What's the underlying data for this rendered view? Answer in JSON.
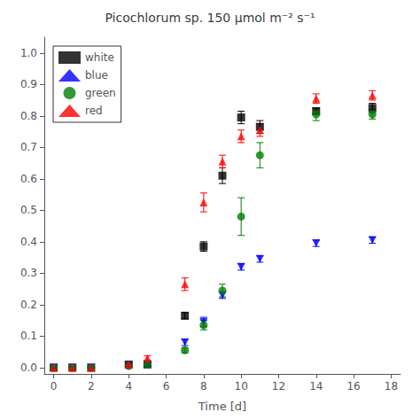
{
  "chart_data": {
    "type": "scatter",
    "title": "Picochlorum sp. 150 μmol m⁻² s⁻¹",
    "x_label": "Time [d]",
    "xlim": [
      -0.5,
      18.5
    ],
    "ylim": [
      -0.02,
      1.05
    ],
    "xticks": [
      0,
      2,
      4,
      6,
      8,
      10,
      12,
      14,
      16,
      18
    ],
    "yticks": [
      {
        "value": 0.0,
        "label": "0.0"
      },
      0.1,
      0.2,
      0.3,
      0.4,
      0.5,
      0.6,
      0.7,
      0.8,
      0.9,
      {
        "value": 1.0,
        "label": "1.0"
      }
    ],
    "grid": false,
    "legend": "upper left",
    "series": [
      {
        "name": "white",
        "color": "#000000",
        "marker": "square",
        "x": [
          0,
          1,
          2,
          4,
          5,
          7,
          8,
          9,
          10,
          11,
          14,
          17
        ],
        "values": [
          0.0,
          0.0,
          0.0,
          0.01,
          0.01,
          0.165,
          0.385,
          0.61,
          0.795,
          0.765,
          0.815,
          0.825
        ],
        "yerr": [
          0.0,
          0.0,
          0.0,
          0.005,
          0.005,
          0.01,
          0.015,
          0.025,
          0.02,
          0.02,
          0.01,
          0.015
        ]
      },
      {
        "name": "blue",
        "color": "#0000ff",
        "marker": "triangle_down",
        "x": [
          0,
          1,
          2,
          4,
          5,
          7,
          8,
          9,
          10,
          11,
          14,
          17
        ],
        "values": [
          0.0,
          0.0,
          0.0,
          0.005,
          0.01,
          0.08,
          0.145,
          0.23,
          0.32,
          0.345,
          0.395,
          0.405
        ],
        "yerr": [
          0.0,
          0.0,
          0.0,
          0.005,
          0.005,
          0.01,
          0.015,
          0.01,
          0.01,
          0.01,
          0.01,
          0.01
        ]
      },
      {
        "name": "green",
        "color": "#008000",
        "marker": "circle",
        "x": [
          0,
          1,
          2,
          4,
          5,
          7,
          8,
          9,
          10,
          11,
          14,
          17
        ],
        "values": [
          0.0,
          0.0,
          0.0,
          0.005,
          0.01,
          0.055,
          0.135,
          0.245,
          0.48,
          0.675,
          0.805,
          0.805
        ],
        "yerr": [
          0.0,
          0.0,
          0.0,
          0.005,
          0.005,
          0.008,
          0.015,
          0.02,
          0.06,
          0.04,
          0.02,
          0.015
        ]
      },
      {
        "name": "red",
        "color": "#ff0000",
        "marker": "triangle_up",
        "x": [
          0,
          1,
          2,
          4,
          5,
          7,
          8,
          9,
          10,
          11,
          14,
          17
        ],
        "values": [
          0.0,
          0.0,
          0.0,
          0.01,
          0.03,
          0.265,
          0.525,
          0.655,
          0.735,
          0.755,
          0.855,
          0.865
        ],
        "yerr": [
          0.0,
          0.0,
          0.0,
          0.005,
          0.008,
          0.02,
          0.03,
          0.02,
          0.02,
          0.02,
          0.015,
          0.015
        ]
      }
    ]
  }
}
